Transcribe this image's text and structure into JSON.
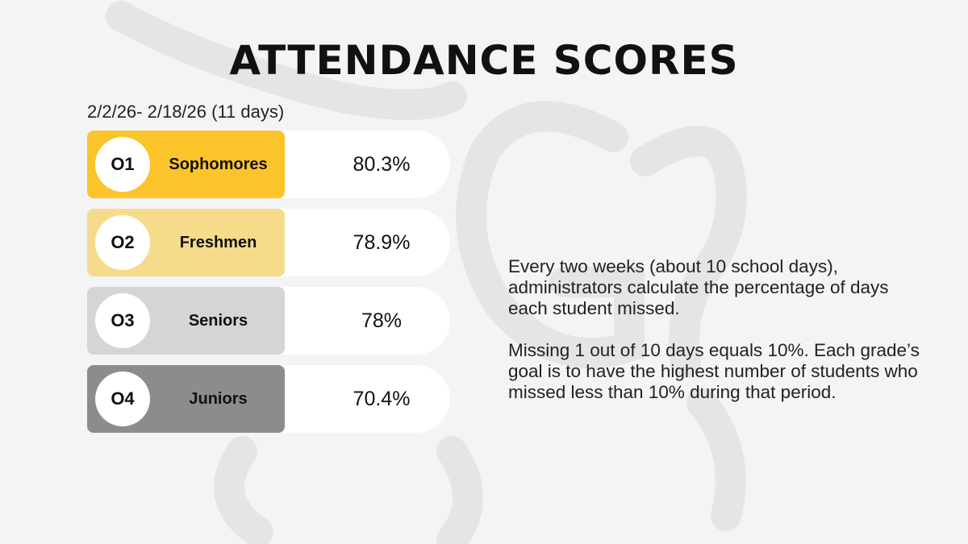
{
  "title": "ATTENDANCE SCORES",
  "date_range": "2/2/26- 2/18/26 (11 days)",
  "rows": [
    {
      "rank": "O1",
      "grade": "Sophomores",
      "score": "80.3%"
    },
    {
      "rank": "O2",
      "grade": "Freshmen",
      "score": "78.9%"
    },
    {
      "rank": "O3",
      "grade": "Seniors",
      "score": "78%"
    },
    {
      "rank": "O4",
      "grade": "Juniors",
      "score": "70.4%"
    }
  ],
  "paragraphs": [
    "Every two weeks (about 10 school days), administrators calculate the percentage of days each student missed.",
    "Missing 1 out of 10 days equals 10%. Each grade’s goal is to have the highest number of students who missed less than 10% during that period."
  ]
}
